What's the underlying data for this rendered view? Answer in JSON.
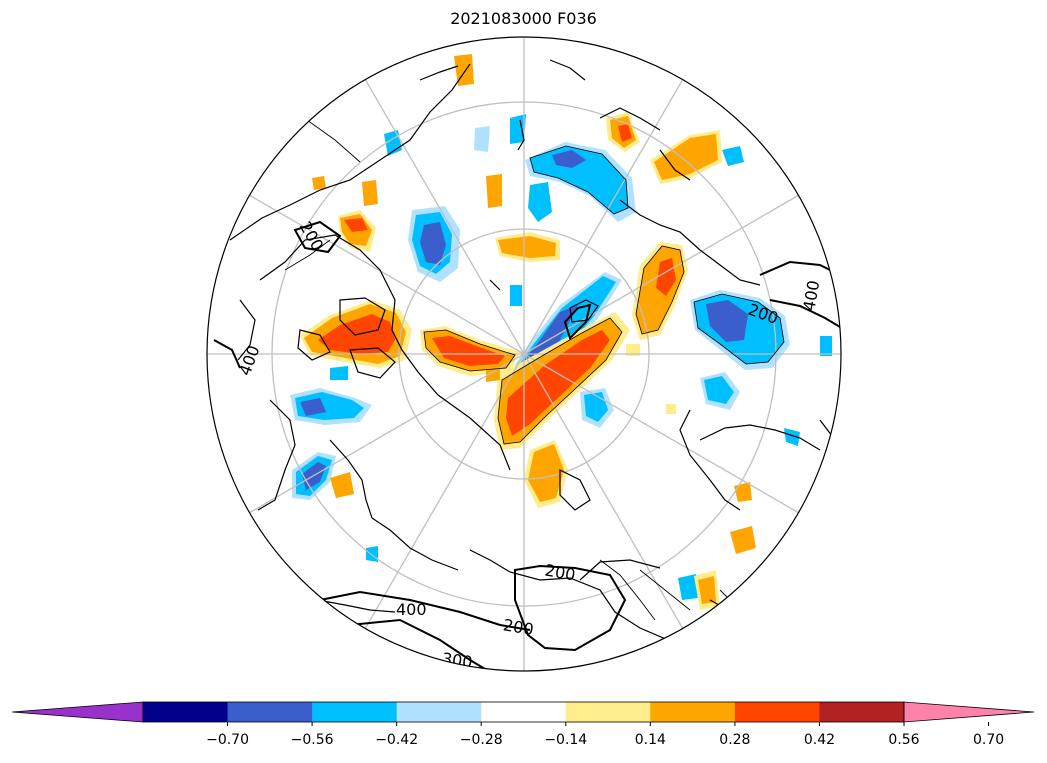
{
  "title": "2021083000 F036",
  "colorbar": {
    "extend": "both",
    "colors": [
      "#9932cc",
      "#00008b",
      "#3a5fcd",
      "#00bfff",
      "#b0e2ff",
      "#ffffff",
      "#ffec8b",
      "#ffa500",
      "#ff4500",
      "#b22222",
      "#ff82ab"
    ],
    "tick_labels": [
      "−0.70",
      "−0.56",
      "−0.42",
      "−0.28",
      "−0.14",
      "0.14",
      "0.28",
      "0.42",
      "0.56",
      "0.70"
    ]
  },
  "contour_labels": [
    "200",
    "400",
    "200",
    "200",
    "400",
    "200",
    "400",
    "300"
  ]
}
